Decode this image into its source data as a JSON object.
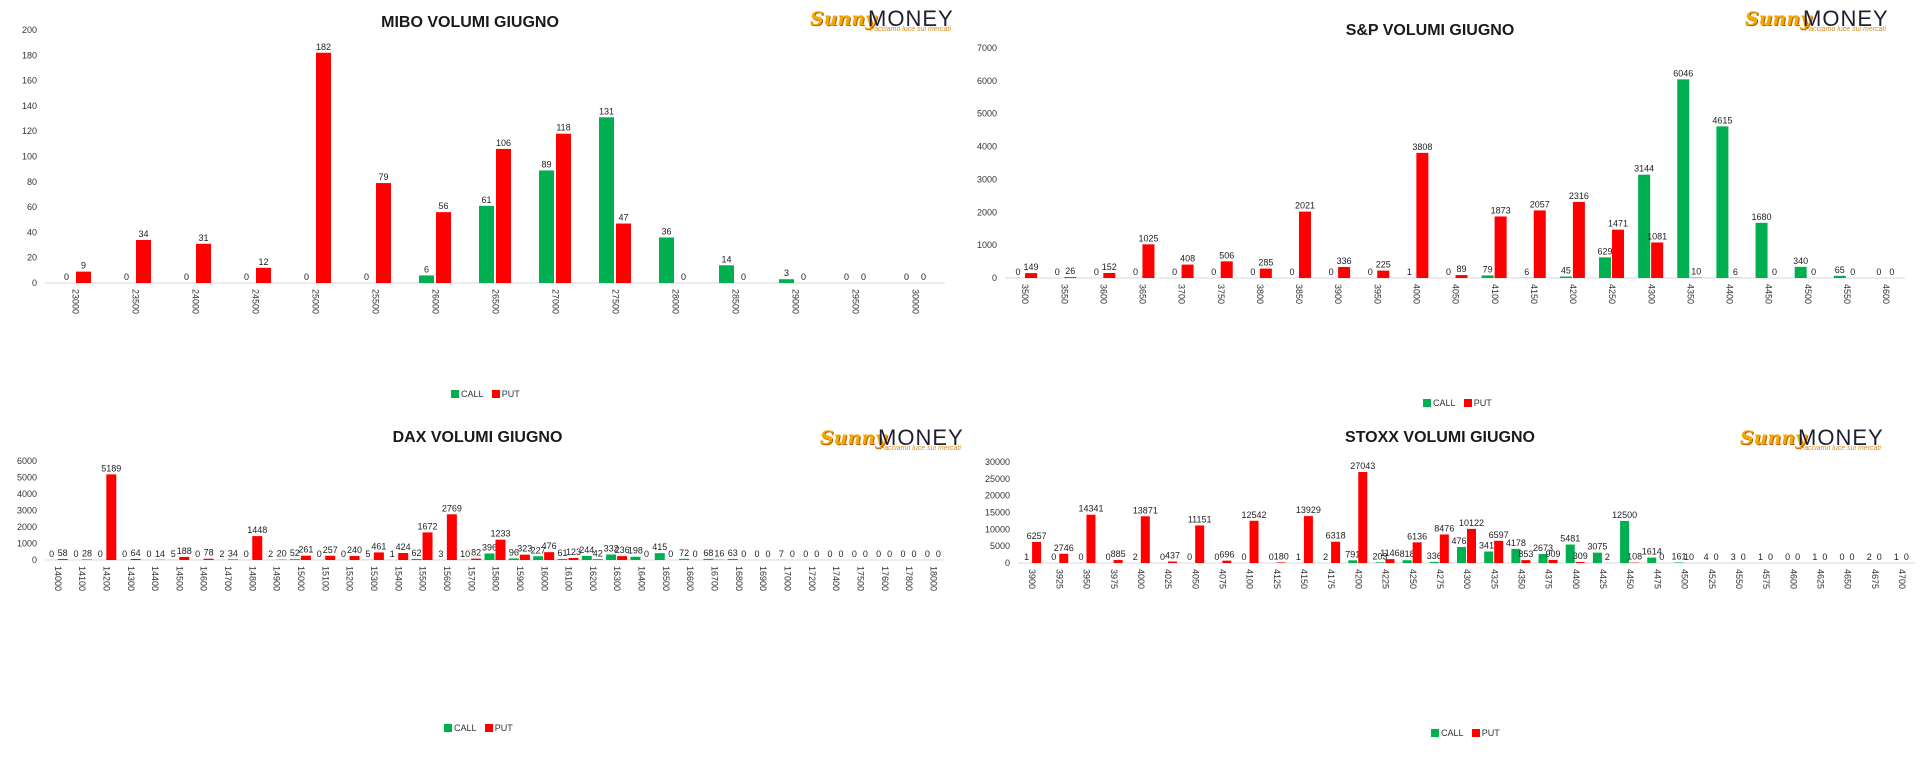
{
  "colors": {
    "call": "#00b050",
    "put": "#ff0000"
  },
  "logo": {
    "word1": "Sunny",
    "word2": "MONEY",
    "tagline": "Facciamo luce sui mercati"
  },
  "chart_data": [
    {
      "id": "mibo",
      "type": "bar",
      "title": "MIBO VOLUMI GIUGNO",
      "ylim": [
        0,
        200
      ],
      "yticks": [
        0,
        20,
        40,
        60,
        80,
        100,
        120,
        140,
        160,
        180,
        200
      ],
      "legend": "bottom-center",
      "categories": [
        "23000",
        "23500",
        "24000",
        "24500",
        "25000",
        "25500",
        "26000",
        "26500",
        "27000",
        "27500",
        "28000",
        "28500",
        "29000",
        "29500",
        "30000"
      ],
      "series": [
        {
          "name": "CALL",
          "values": [
            0,
            0,
            0,
            0,
            0,
            0,
            6,
            61,
            89,
            131,
            36,
            14,
            3,
            0,
            0
          ]
        },
        {
          "name": "PUT",
          "values": [
            9,
            34,
            31,
            12,
            182,
            79,
            56,
            106,
            118,
            47,
            0,
            0,
            0,
            0,
            0
          ]
        }
      ]
    },
    {
      "id": "sp",
      "type": "bar",
      "title": "S&P VOLUMI GIUGNO",
      "ylim": [
        0,
        7000
      ],
      "yticks": [
        0,
        1000,
        2000,
        3000,
        4000,
        5000,
        6000,
        7000
      ],
      "legend": "bottom-center",
      "categories": [
        "3500",
        "3550",
        "3600",
        "3650",
        "3700",
        "3750",
        "3800",
        "3850",
        "3900",
        "3950",
        "4000",
        "4050",
        "4100",
        "4150",
        "4200",
        "4250",
        "4300",
        "4350",
        "4400",
        "4450",
        "4500",
        "4550",
        "4600"
      ],
      "series": [
        {
          "name": "CALL",
          "values": [
            0,
            0,
            0,
            0,
            0,
            0,
            0,
            0,
            0,
            0,
            1,
            0,
            79,
            6,
            45,
            629,
            3144,
            6046,
            4615,
            1680,
            340,
            65,
            0
          ]
        },
        {
          "name": "PUT",
          "values": [
            149,
            26,
            152,
            1025,
            408,
            506,
            285,
            2021,
            336,
            225,
            3808,
            89,
            1873,
            2057,
            2316,
            1471,
            1081,
            10,
            6,
            0,
            0,
            0,
            0
          ]
        }
      ]
    },
    {
      "id": "dax",
      "type": "bar",
      "title": "DAX VOLUMI GIUGNO",
      "ylim": [
        0,
        6000
      ],
      "yticks": [
        0,
        1000,
        2000,
        3000,
        4000,
        5000,
        6000
      ],
      "legend": "bottom-center",
      "categories": [
        "14000",
        "14100",
        "14200",
        "14300",
        "14400",
        "14500",
        "14600",
        "14700",
        "14800",
        "14900",
        "15000",
        "15100",
        "15200",
        "15300",
        "15400",
        "15500",
        "15600",
        "15700",
        "15800",
        "15900",
        "16000",
        "16100",
        "16200",
        "16300",
        "16400",
        "16500",
        "16600",
        "16700",
        "16800",
        "16900",
        "17000",
        "17200",
        "17400",
        "17500",
        "17600",
        "17800",
        "18000"
      ],
      "series": [
        {
          "name": "CALL",
          "values": [
            0,
            0,
            0,
            0,
            0,
            5,
            0,
            2,
            0,
            2,
            52,
            0,
            0,
            5,
            1,
            62,
            3,
            10,
            396,
            96,
            227,
            61,
            244,
            332,
            198,
            415,
            72,
            68,
            63,
            0,
            7,
            0,
            0,
            0,
            0,
            0,
            0
          ]
        },
        {
          "name": "PUT",
          "values": [
            58,
            28,
            5189,
            64,
            14,
            188,
            78,
            34,
            1448,
            20,
            261,
            257,
            240,
            461,
            424,
            1672,
            2769,
            82,
            1233,
            323,
            476,
            123,
            42,
            236,
            0,
            0,
            0,
            16,
            0,
            0,
            0,
            0,
            0,
            0,
            0,
            0,
            0
          ]
        }
      ]
    },
    {
      "id": "stoxx",
      "type": "bar",
      "title": "STOXX VOLUMI GIUGNO",
      "ylim": [
        0,
        30000
      ],
      "yticks": [
        0,
        5000,
        10000,
        15000,
        20000,
        25000,
        30000
      ],
      "legend": "bottom-center",
      "categories": [
        "3900",
        "3925",
        "3950",
        "3975",
        "4000",
        "4025",
        "4050",
        "4075",
        "4100",
        "4125",
        "4150",
        "4175",
        "4200",
        "4225",
        "4250",
        "4275",
        "4300",
        "4325",
        "4350",
        "4375",
        "4400",
        "4425",
        "4450",
        "4475",
        "4500",
        "4525",
        "4550",
        "4575",
        "4600",
        "4625",
        "4650",
        "4675",
        "4700"
      ],
      "series": [
        {
          "name": "CALL",
          "values": [
            1,
            0,
            0,
            0,
            2,
            0,
            0,
            0,
            0,
            0,
            1,
            2,
            791,
            203,
            818,
            336,
            4761,
            3411,
            4178,
            2673,
            5481,
            3075,
            12500,
            1614,
            161,
            4,
            3,
            1,
            0,
            1,
            0,
            2,
            1
          ]
        },
        {
          "name": "PUT",
          "values": [
            6257,
            2746,
            14341,
            885,
            13871,
            437,
            11151,
            696,
            12542,
            180,
            13929,
            6318,
            27043,
            1146,
            6136,
            8476,
            10122,
            6597,
            853,
            909,
            309,
            2,
            108,
            0,
            10,
            0,
            0,
            0,
            0,
            0,
            0,
            0,
            0
          ]
        }
      ]
    }
  ]
}
